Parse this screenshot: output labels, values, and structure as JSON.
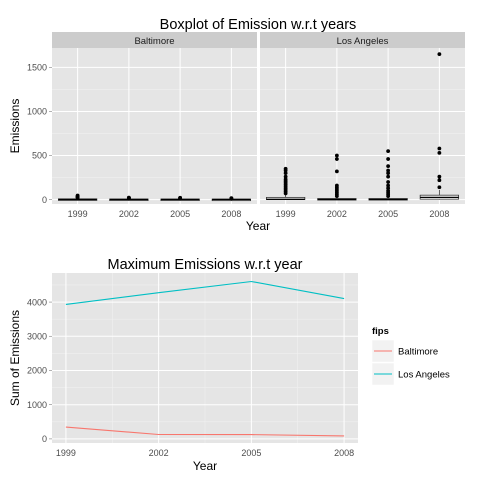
{
  "chart_data": [
    {
      "type": "boxplot",
      "title": "Boxplot of Emission w.r.t years",
      "xlabel": "Year",
      "ylabel": "Emissions",
      "ylim": [
        -50,
        1720
      ],
      "yticks": [
        0,
        500,
        1000,
        1500
      ],
      "categories": [
        "1999",
        "2002",
        "2005",
        "2008"
      ],
      "grid": true,
      "facets": [
        {
          "name": "Baltimore",
          "boxes": [
            {
              "q1": 0.5,
              "median": 2,
              "q3": 8,
              "whisker_low": 0,
              "whisker_high": 20,
              "outliers": [
                22,
                25,
                30,
                35,
                40,
                46
              ]
            },
            {
              "q1": 0.5,
              "median": 2,
              "q3": 6,
              "whisker_low": 0,
              "whisker_high": 14,
              "outliers": [
                16,
                18,
                20,
                22
              ]
            },
            {
              "q1": 0.5,
              "median": 2,
              "q3": 6,
              "whisker_low": 0,
              "whisker_high": 14,
              "outliers": [
                16,
                18,
                20
              ]
            },
            {
              "q1": 0.5,
              "median": 2,
              "q3": 5,
              "whisker_low": 0,
              "whisker_high": 12,
              "outliers": [
                14,
                16
              ]
            }
          ]
        },
        {
          "name": "Los Angeles",
          "boxes": [
            {
              "q1": 0.5,
              "median": 3,
              "q3": 25,
              "whisker_low": 0,
              "whisker_high": 60,
              "outliers": [
                70,
                90,
                110,
                130,
                150,
                170,
                190,
                210,
                230,
                260,
                300,
                330,
                350
              ]
            },
            {
              "q1": 0.5,
              "median": 2,
              "q3": 12,
              "whisker_low": 0,
              "whisker_high": 30,
              "outliers": [
                40,
                60,
                80,
                100,
                120,
                140,
                160,
                320,
                460,
                500
              ]
            },
            {
              "q1": 0.5,
              "median": 2,
              "q3": 12,
              "whisker_low": 0,
              "whisker_high": 30,
              "outliers": [
                40,
                60,
                80,
                100,
                130,
                160,
                200,
                260,
                300,
                330,
                380,
                460,
                550
              ]
            },
            {
              "q1": 5,
              "median": 25,
              "q3": 50,
              "whisker_low": 0,
              "whisker_high": 110,
              "outliers": [
                140,
                220,
                260,
                530,
                580,
                1650
              ]
            }
          ]
        }
      ]
    },
    {
      "type": "line",
      "title": "Maximum Emissions w.r.t year",
      "xlabel": "Year",
      "ylabel": "Sum of Emissions",
      "x": [
        1999,
        2002,
        2005,
        2008
      ],
      "xticks": [
        "1999",
        "2002",
        "2005",
        "2008"
      ],
      "yticks": [
        0,
        1000,
        2000,
        3000,
        4000
      ],
      "ylim": [
        -120,
        4850
      ],
      "grid": true,
      "legend": {
        "title": "fips",
        "placement": "right"
      },
      "series": [
        {
          "name": "Baltimore",
          "values": [
            346,
            128,
            127,
            88
          ],
          "color": "#F8766D"
        },
        {
          "name": "Los Angeles",
          "values": [
            3931,
            4273,
            4601,
            4101
          ],
          "color": "#00BFC4"
        }
      ]
    }
  ]
}
